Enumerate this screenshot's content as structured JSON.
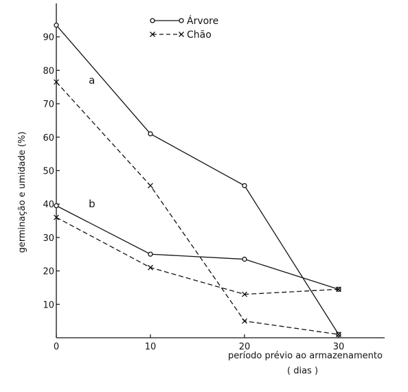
{
  "chart_data": {
    "type": "line",
    "title": "",
    "xlabel_line1": "período prévio ao armazenamento",
    "xlabel_line2": "( dias )",
    "ylabel": "germinação e umidade   (%)",
    "x": [
      0,
      10,
      20,
      30
    ],
    "xlim": [
      0,
      34
    ],
    "ylim": [
      0,
      100
    ],
    "xticks": [
      "0",
      "10",
      "20",
      "30"
    ],
    "yticks": [
      {
        "value": 10,
        "label": "10"
      },
      {
        "value": 20,
        "label": "20"
      },
      {
        "value": 30,
        "label": "30"
      },
      {
        "value": 40,
        "label": "40"
      },
      {
        "value": 50,
        "label": "50"
      },
      {
        "value": 60,
        "label": "60"
      },
      {
        "value": 70,
        "label": "70"
      },
      {
        "value": 80,
        "label": "80"
      },
      {
        "value": 90,
        "label": "90"
      }
    ],
    "grid": false,
    "legend": {
      "position": "top-center",
      "entries": [
        {
          "name": "Árvore",
          "style": "solid",
          "marker": "circle"
        },
        {
          "name": "Chão",
          "style": "dashed",
          "marker": "x"
        }
      ]
    },
    "annotations": [
      {
        "text": "a",
        "x": 3,
        "y": 77
      },
      {
        "text": "b",
        "x": 3,
        "y": 40
      }
    ],
    "series": [
      {
        "name": "Árvore",
        "group": "a",
        "style": "solid",
        "marker": "circle",
        "values": [
          93.5,
          61,
          45.5,
          1
        ]
      },
      {
        "name": "Chão",
        "group": "a",
        "style": "dashed",
        "marker": "x",
        "values": [
          76.5,
          45.5,
          5,
          1
        ]
      },
      {
        "name": "Árvore",
        "group": "b",
        "style": "solid",
        "marker": "circle",
        "values": [
          39.5,
          25,
          23.5,
          14.5
        ]
      },
      {
        "name": "Chão",
        "group": "b",
        "style": "dashed",
        "marker": "x",
        "values": [
          36,
          21,
          13,
          14.5
        ]
      }
    ],
    "colors": {
      "ink": "#111111",
      "background": "#ffffff"
    }
  }
}
